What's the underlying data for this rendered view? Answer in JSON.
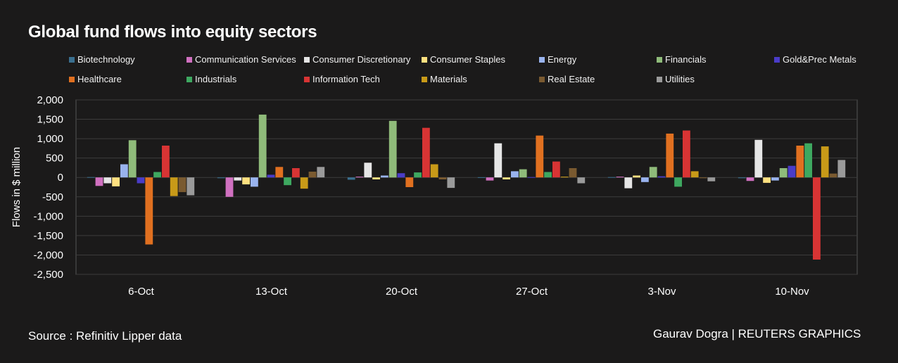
{
  "chart_data": {
    "type": "bar",
    "title": "Global fund flows into equity sectors",
    "xlabel": "",
    "ylabel": "Flows in $ million",
    "ylim": [
      -2500,
      2000
    ],
    "yticks": [
      2000,
      1500,
      1000,
      500,
      0,
      -500,
      -1000,
      -1500,
      -2000,
      -2500
    ],
    "ytick_labels": [
      "2,000",
      "1,500",
      "1,000",
      "500",
      "0",
      "-500",
      "-1,000",
      "-1,500",
      "-2,000",
      "-2,500"
    ],
    "categories": [
      "6-Oct",
      "13-Oct",
      "20-Oct",
      "27-Oct",
      "3-Nov",
      "10-Nov"
    ],
    "legend_position": "top",
    "series": [
      {
        "name": "Biotechnology",
        "color": "#3a6f8f",
        "values": [
          10,
          -20,
          -60,
          5,
          10,
          -20
        ]
      },
      {
        "name": "Communication Services",
        "color": "#d070c0",
        "values": [
          -220,
          -500,
          20,
          -80,
          20,
          -90
        ]
      },
      {
        "name": "Consumer Discretionary",
        "color": "#e6e6e6",
        "values": [
          -150,
          -80,
          380,
          880,
          -280,
          970
        ]
      },
      {
        "name": "Consumer Staples",
        "color": "#ffe080",
        "values": [
          -230,
          -180,
          -50,
          -50,
          50,
          -140
        ]
      },
      {
        "name": "Energy",
        "color": "#99b3ee",
        "values": [
          340,
          -240,
          50,
          160,
          -120,
          -80
        ]
      },
      {
        "name": "Financials",
        "color": "#8fbb7a",
        "values": [
          960,
          1620,
          1460,
          210,
          270,
          240
        ]
      },
      {
        "name": "Gold&Prec Metals",
        "color": "#4a3cc8",
        "values": [
          -150,
          70,
          110,
          10,
          30,
          300
        ]
      },
      {
        "name": "Healthcare",
        "color": "#e07020",
        "values": [
          -1730,
          270,
          -250,
          1080,
          1130,
          820
        ]
      },
      {
        "name": "Industrials",
        "color": "#3ea860",
        "values": [
          140,
          -200,
          130,
          140,
          -240,
          880
        ]
      },
      {
        "name": "Information Tech",
        "color": "#d83434",
        "values": [
          820,
          240,
          1280,
          410,
          1210,
          -2120
        ]
      },
      {
        "name": "Materials",
        "color": "#c89a18",
        "values": [
          -480,
          -290,
          340,
          20,
          160,
          800
        ]
      },
      {
        "name": "Real Estate",
        "color": "#7a5a30",
        "values": [
          -380,
          150,
          -50,
          240,
          -20,
          100
        ]
      },
      {
        "name": "Utilities",
        "color": "#9a9a9a",
        "values": [
          -460,
          270,
          -270,
          -150,
          -100,
          450
        ]
      }
    ]
  },
  "footer": {
    "source": "Source : Refinitiv Lipper data",
    "credit": "Gaurav Dogra | REUTERS GRAPHICS"
  },
  "colors": {
    "background": "#1b1a1a",
    "gridline": "#3c3c3c",
    "axis_text": "#ffffff"
  }
}
